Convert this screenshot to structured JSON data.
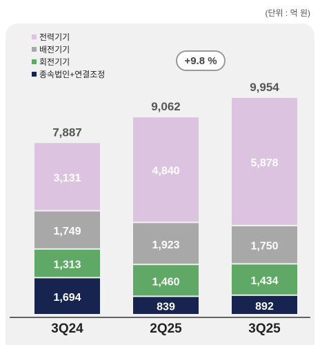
{
  "unit_label": "(단위 : 억 원)",
  "growth_badge": "+9.8 %",
  "colors": {
    "전력기기": "#dcc4e0",
    "배전기기": "#a8a8a8",
    "회전기기": "#5fa865",
    "종속법인+연결조정": "#16244f"
  },
  "chart_data": {
    "type": "bar",
    "stacked": true,
    "categories": [
      "3Q24",
      "2Q25",
      "3Q25"
    ],
    "series": [
      {
        "name": "종속법인+연결조정",
        "values": [
          1694,
          839,
          892
        ]
      },
      {
        "name": "회전기기",
        "values": [
          1313,
          1460,
          1434
        ]
      },
      {
        "name": "배전기기",
        "values": [
          1749,
          1923,
          1750
        ]
      },
      {
        "name": "전력기기",
        "values": [
          3131,
          4840,
          5878
        ]
      }
    ],
    "totals": [
      "7,887",
      "9,062",
      "9,954"
    ],
    "legend_order": [
      "전력기기",
      "배전기기",
      "회전기기",
      "종속법인+연결조정"
    ],
    "legend_position": "top-left",
    "grid": false
  }
}
